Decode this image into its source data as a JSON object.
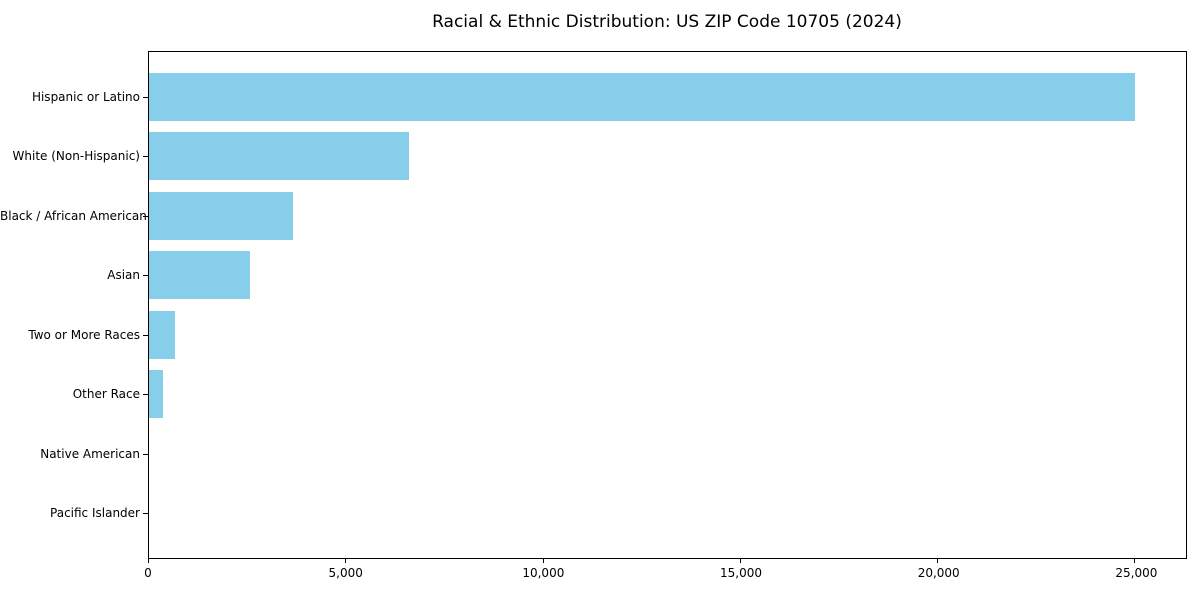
{
  "chart_data": {
    "type": "bar",
    "orientation": "horizontal",
    "title": "Racial & Ethnic Distribution: US ZIP Code 10705 (2024)",
    "categories": [
      "Hispanic or Latino",
      "White (Non-Hispanic)",
      "Black / African American",
      "Asian",
      "Two or More Races",
      "Other Race",
      "Native American",
      "Pacific Islander"
    ],
    "values": [
      25000,
      6600,
      3640,
      2550,
      670,
      360,
      0,
      0
    ],
    "xlabel": "",
    "ylabel": "",
    "xlim": [
      0,
      26280
    ],
    "xticks": [
      0,
      5000,
      10000,
      15000,
      20000,
      25000
    ],
    "xtick_labels": [
      "0",
      "5,000",
      "10,000",
      "15,000",
      "20,000",
      "25,000"
    ],
    "bar_color": "#87CEEB",
    "background_color": "#FFFFFF",
    "axis_color": "#000000",
    "text_color": "#000000",
    "grid": false,
    "legend_position": "none"
  }
}
